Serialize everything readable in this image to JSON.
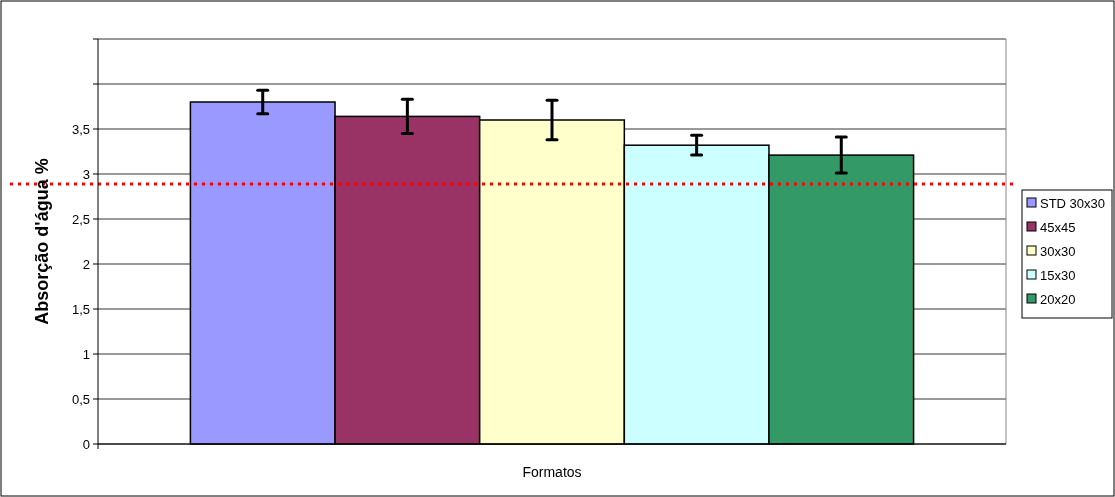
{
  "chart_data": {
    "type": "bar",
    "xlabel": "Formatos",
    "ylabel": "Absorção d'água %",
    "categories": [
      null
    ],
    "series": [
      {
        "name": "STD 30x30",
        "color": "#9999ff",
        "values": [
          3.8
        ],
        "errors": [
          0.13
        ]
      },
      {
        "name": "45x45",
        "color": "#993366",
        "values": [
          3.64
        ],
        "errors": [
          0.19
        ]
      },
      {
        "name": "30x30",
        "color": "#ffffcc",
        "values": [
          3.6
        ],
        "errors": [
          0.22
        ]
      },
      {
        "name": "15x30",
        "color": "#ccffff",
        "values": [
          3.32
        ],
        "errors": [
          0.11
        ]
      },
      {
        "name": "20x20",
        "color": "#339966",
        "values": [
          3.21
        ],
        "errors": [
          0.2
        ]
      }
    ],
    "ylim": [
      0,
      4.5
    ],
    "yticks": [
      0,
      {
        "value": 0.5,
        "label": "0,5"
      },
      1,
      {
        "value": 1.5,
        "label": "1,5"
      },
      2,
      {
        "value": 2.5,
        "label": "2,5"
      },
      3,
      {
        "value": 3.5,
        "label": "3,5"
      },
      {
        "value": 4,
        "label": null
      },
      {
        "value": 4.5,
        "label": null
      }
    ],
    "grid": "y",
    "legend": "right",
    "ref_lines": [
      {
        "axis": "y",
        "value": 2.89,
        "color": "#ff0000",
        "line_style": "dotted"
      }
    ]
  }
}
